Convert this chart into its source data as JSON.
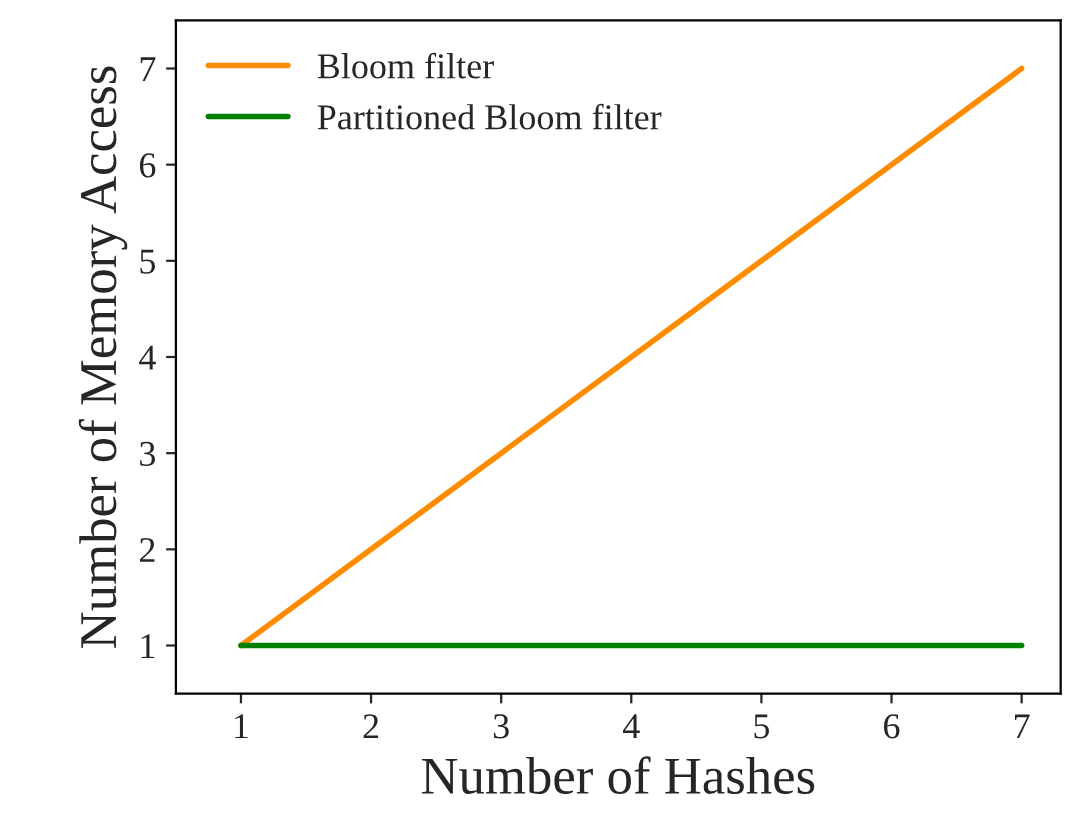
{
  "chart_data": {
    "type": "line",
    "xlabel": "Number of Hashes",
    "ylabel": "Number of Memory Access",
    "x": [
      1,
      2,
      3,
      4,
      5,
      6,
      7
    ],
    "series": [
      {
        "name": "Bloom filter",
        "color": "#ff8c00",
        "values": [
          1,
          2,
          3,
          4,
          5,
          6,
          7
        ]
      },
      {
        "name": "Partitioned Bloom filter",
        "color": "#008000",
        "values": [
          1,
          1,
          1,
          1,
          1,
          1,
          1
        ]
      }
    ],
    "xlim": [
      0.5,
      7.3
    ],
    "ylim": [
      0.5,
      7.5
    ],
    "xticks": [
      1,
      2,
      3,
      4,
      5,
      6,
      7
    ],
    "yticks": [
      1,
      2,
      3,
      4,
      5,
      6,
      7
    ],
    "grid": false,
    "legend": "top left",
    "marker": "none",
    "line_style": "solid"
  }
}
